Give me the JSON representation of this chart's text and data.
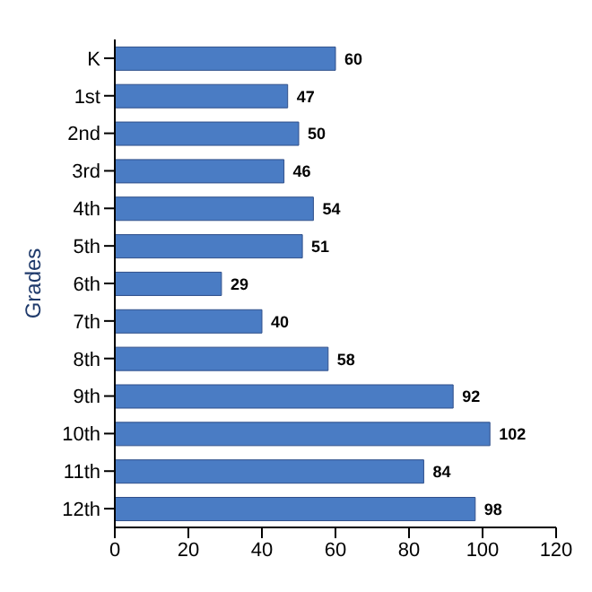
{
  "chart_data": {
    "type": "bar",
    "orientation": "horizontal",
    "ylabel": "Grades",
    "categories": [
      "K",
      "1st",
      "2nd",
      "3rd",
      "4th",
      "5th",
      "6th",
      "7th",
      "8th",
      "9th",
      "10th",
      "11th",
      "12th"
    ],
    "values": [
      60,
      47,
      50,
      46,
      54,
      51,
      29,
      40,
      58,
      92,
      102,
      84,
      98
    ],
    "color": "#4a7cc4",
    "xlim": [
      0,
      120
    ],
    "xticks": [
      0,
      20,
      40,
      60,
      80,
      100,
      120
    ],
    "data_labels": true
  }
}
